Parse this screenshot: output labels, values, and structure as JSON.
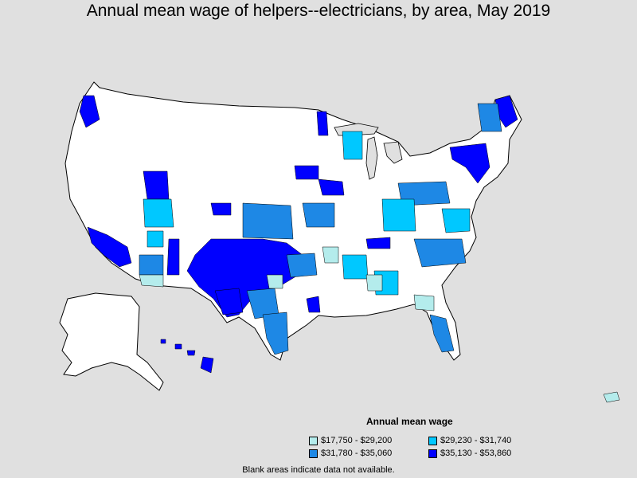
{
  "title": "Annual mean wage of helpers--electricians, by area, May 2019",
  "legend": {
    "title": "Annual mean wage",
    "items": [
      {
        "label": "$17,750 - $29,200",
        "color": "#b4ecec"
      },
      {
        "label": "$29,230 - $31,740",
        "color": "#00c8ff"
      },
      {
        "label": "$31,780 - $35,060",
        "color": "#1e88e5"
      },
      {
        "label": "$35,130 - $53,860",
        "color": "#0000ff"
      }
    ]
  },
  "footnote": "Blank areas indicate data not available.",
  "colors": {
    "background": "#e0e0e0",
    "no_data": "#ffffff",
    "border": "#000000"
  }
}
